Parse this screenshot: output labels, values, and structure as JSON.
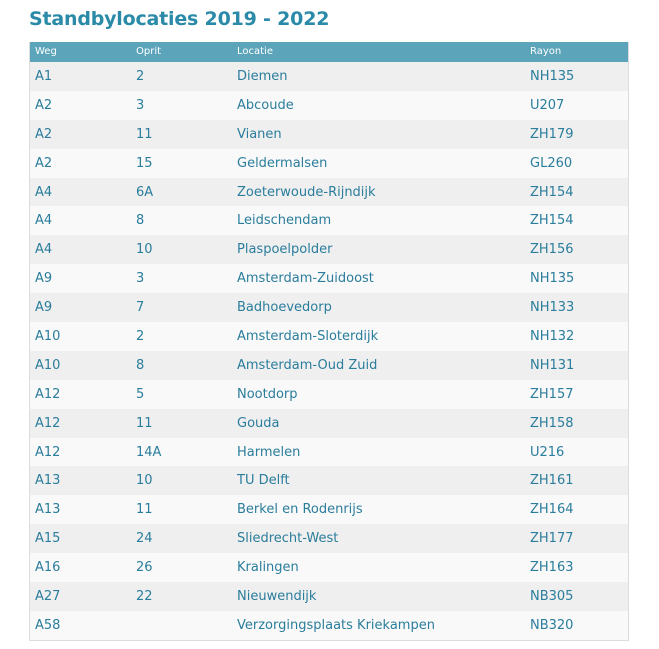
{
  "page": {
    "title": "Standbylocaties 2019 - 2022"
  },
  "table": {
    "headers": {
      "weg": "Weg",
      "oprit": "Oprit",
      "locatie": "Locatie",
      "rayon": "Rayon"
    },
    "rows": [
      {
        "weg": "A1",
        "oprit": "2",
        "locatie": "Diemen",
        "rayon": "NH135"
      },
      {
        "weg": "A2",
        "oprit": "3",
        "locatie": "Abcoude",
        "rayon": "U207"
      },
      {
        "weg": "A2",
        "oprit": "11",
        "locatie": "Vianen",
        "rayon": "ZH179"
      },
      {
        "weg": "A2",
        "oprit": "15",
        "locatie": "Geldermalsen",
        "rayon": "GL260"
      },
      {
        "weg": "A4",
        "oprit": "6A",
        "locatie": "Zoeterwoude-Rijndijk",
        "rayon": "ZH154"
      },
      {
        "weg": "A4",
        "oprit": "8",
        "locatie": "Leidschendam",
        "rayon": "ZH154"
      },
      {
        "weg": "A4",
        "oprit": "10",
        "locatie": "Plaspoelpolder",
        "rayon": "ZH156"
      },
      {
        "weg": "A9",
        "oprit": "3",
        "locatie": "Amsterdam-Zuidoost",
        "rayon": "NH135"
      },
      {
        "weg": "A9",
        "oprit": "7",
        "locatie": "Badhoevedorp",
        "rayon": "NH133"
      },
      {
        "weg": "A10",
        "oprit": "2",
        "locatie": "Amsterdam-Sloterdijk",
        "rayon": "NH132"
      },
      {
        "weg": "A10",
        "oprit": "8",
        "locatie": "Amsterdam-Oud Zuid",
        "rayon": "NH131"
      },
      {
        "weg": "A12",
        "oprit": "5",
        "locatie": "Nootdorp",
        "rayon": "ZH157"
      },
      {
        "weg": "A12",
        "oprit": "11",
        "locatie": "Gouda",
        "rayon": "ZH158"
      },
      {
        "weg": "A12",
        "oprit": "14A",
        "locatie": "Harmelen",
        "rayon": "U216"
      },
      {
        "weg": "A13",
        "oprit": "10",
        "locatie": "TU Delft",
        "rayon": "ZH161"
      },
      {
        "weg": "A13",
        "oprit": "11",
        "locatie": "Berkel en Rodenrijs",
        "rayon": "ZH164"
      },
      {
        "weg": "A15",
        "oprit": "24",
        "locatie": "Sliedrecht-West",
        "rayon": "ZH177"
      },
      {
        "weg": "A16",
        "oprit": "26",
        "locatie": "Kralingen",
        "rayon": "ZH163"
      },
      {
        "weg": "A27",
        "oprit": "22",
        "locatie": "Nieuwendijk",
        "rayon": "NB305"
      },
      {
        "weg": "A58",
        "oprit": "",
        "locatie": "Verzorgingsplaats Kriekampen",
        "rayon": "NB320"
      }
    ]
  },
  "colors": {
    "title": "#2a8aa7",
    "header_bg": "#5ba4ba",
    "cell_text": "#2a7d9c",
    "row_odd": "#efefef",
    "row_even": "#f9f9f9"
  }
}
